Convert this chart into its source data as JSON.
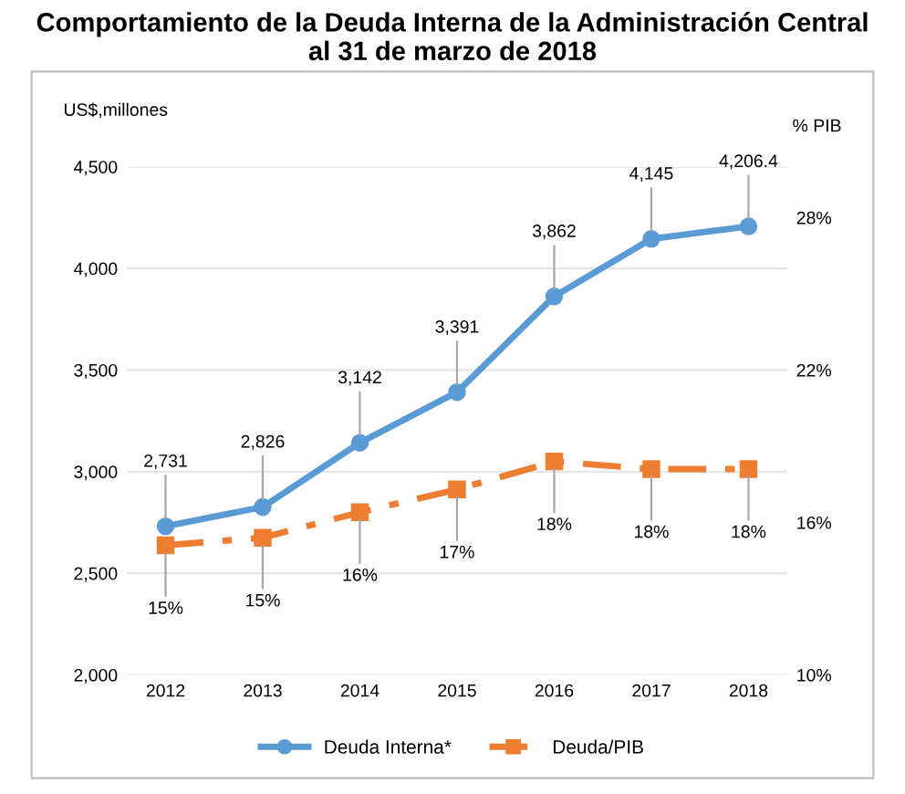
{
  "chart_data": {
    "type": "line",
    "title": "Comportamiento de la Deuda Interna de la Administración Central\nal 31 de marzo de 2018",
    "ylabel": "US$,millones",
    "y2label": "% PIB",
    "categories": [
      "2012",
      "2013",
      "2014",
      "2015",
      "2016",
      "2017",
      "2018"
    ],
    "series": [
      {
        "name": "Deuda Interna*",
        "color": "#5b9bd5",
        "values": [
          2731,
          2826,
          3142,
          3391,
          3862,
          4145,
          4206.4
        ],
        "value_labels": [
          "2,731",
          "2,826",
          "3,142",
          "3,391",
          "3,862",
          "4,145",
          "4,206.4"
        ],
        "marker": "circle",
        "line_style": "solid"
      },
      {
        "name": "Deuda/PIB",
        "color": "#ed7d31",
        "axis": "y2",
        "values": [
          15.1,
          15.4,
          16.4,
          17.3,
          18.4,
          18.1,
          18.1
        ],
        "value_labels": [
          "15%",
          "15%",
          "16%",
          "17%",
          "18%",
          "18%",
          "18%"
        ],
        "marker": "square",
        "line_style": "dashed"
      }
    ],
    "ylim": [
      2000,
      4500
    ],
    "yticks": [
      {
        "value": 2000,
        "label": "2,000"
      },
      {
        "value": 2500,
        "label": "2,500"
      },
      {
        "value": 3000,
        "label": "3,000"
      },
      {
        "value": 3500,
        "label": "3,500"
      },
      {
        "value": 4000,
        "label": "4,000"
      },
      {
        "value": 4500,
        "label": "4,500"
      }
    ],
    "y2lim": [
      10,
      30
    ],
    "y2ticks": [
      {
        "value": 10,
        "label": "10%"
      },
      {
        "value": 16,
        "label": "16%"
      },
      {
        "value": 22,
        "label": "22%"
      },
      {
        "value": 28,
        "label": "28%"
      }
    ],
    "grid": "y",
    "legend": "bottom"
  }
}
